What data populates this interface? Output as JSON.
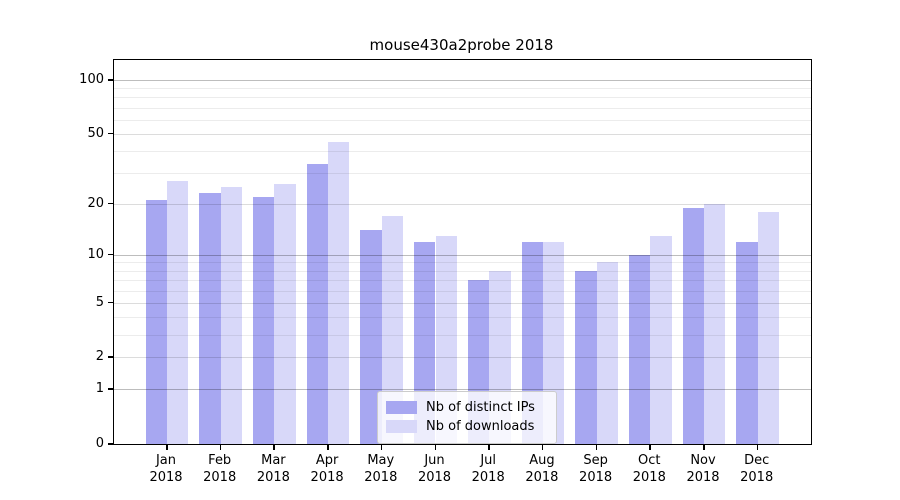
{
  "title": "mouse430a2probe 2018",
  "chart_data": {
    "type": "bar",
    "title": "mouse430a2probe 2018",
    "categories": [
      "Jan",
      "Feb",
      "Mar",
      "Apr",
      "May",
      "Jun",
      "Jul",
      "Aug",
      "Sep",
      "Oct",
      "Nov",
      "Dec"
    ],
    "year_label": "2018",
    "series": [
      {
        "name": "Nb of distinct IPs",
        "color": "#a7a7f1",
        "values": [
          21,
          23,
          22,
          34,
          14,
          12,
          7,
          12,
          8,
          10,
          19,
          12
        ]
      },
      {
        "name": "Nb of downloads",
        "color": "#d8d8f9",
        "values": [
          27,
          25,
          26,
          45,
          17,
          13,
          8,
          12,
          9,
          13,
          20,
          18
        ]
      }
    ],
    "y_axis": {
      "scale": "log1p",
      "tick_labels": [
        "0",
        "1",
        "2",
        "5",
        "10",
        "20",
        "50",
        "100"
      ],
      "ticks": [
        0,
        1,
        2,
        5,
        10,
        20,
        50,
        100
      ],
      "minor_gridlines": [
        3,
        4,
        6,
        7,
        8,
        9,
        30,
        40,
        60,
        70,
        80,
        90
      ],
      "range": [
        0,
        130
      ],
      "grid": true
    },
    "legend": {
      "position": "lower center",
      "entries": [
        "Nb of distinct IPs",
        "Nb of downloads"
      ]
    },
    "colors": {
      "major_gridline": "#bdbdbd",
      "labeled_gridline": "#dcdcdc",
      "minor_gridline": "#ececec",
      "axis": "#000000"
    }
  }
}
